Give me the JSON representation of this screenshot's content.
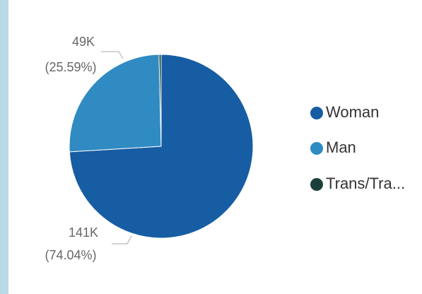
{
  "chart_data": {
    "type": "pie",
    "categories": [
      "Woman",
      "Man",
      "Trans/Tra..."
    ],
    "values": [
      74.04,
      25.59,
      0.37
    ],
    "count_labels": [
      "141K",
      "49K",
      null
    ],
    "value_labels": [
      "(74.04%)",
      "(25.59%)",
      null
    ],
    "colors": [
      "#175da3",
      "#2f8bc2",
      "#1b403b"
    ],
    "legend": "right"
  }
}
